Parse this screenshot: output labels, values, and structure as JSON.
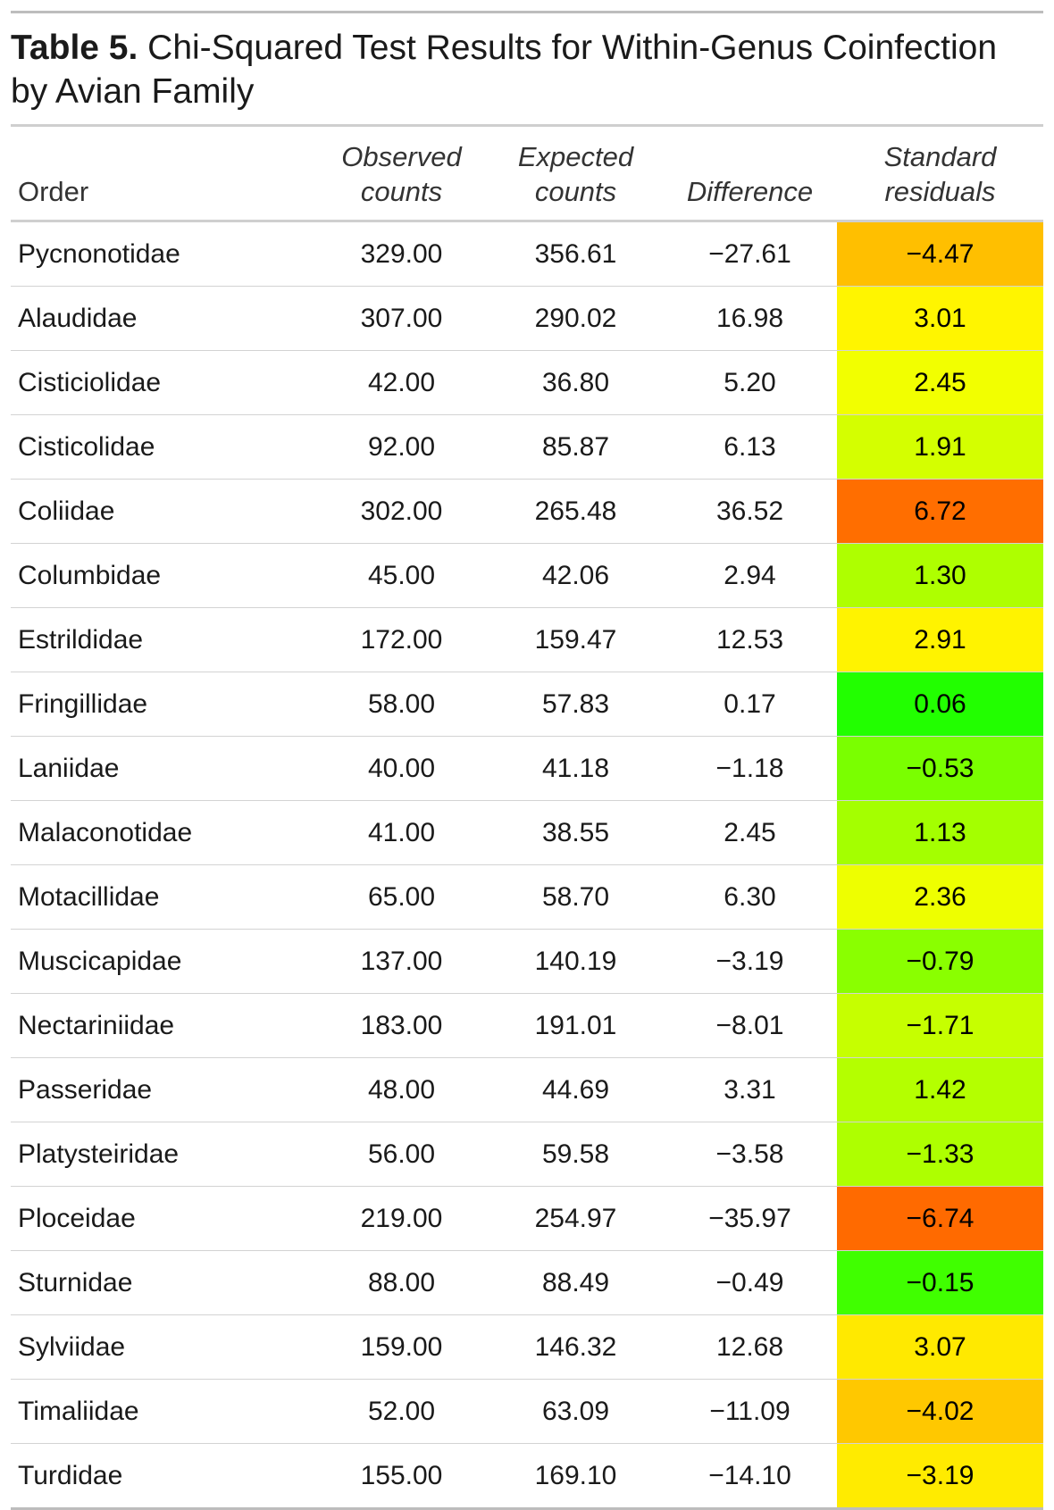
{
  "caption": {
    "lead": "Table 5.",
    "text": " Chi-Squared Test Results for Within-Genus Coinfection by Avian Family"
  },
  "columns": [
    "Order",
    "Observed counts",
    "Expected counts",
    "Difference",
    "Standard residuals"
  ],
  "chart_data": {
    "type": "table",
    "title": "Table 5. Chi-Squared Test Results for Within-Genus Coinfection by Avian Family",
    "columns": [
      "Order",
      "Observed counts",
      "Expected counts",
      "Difference",
      "Standard residuals"
    ],
    "rows": [
      {
        "order": "Pycnonotidae",
        "observed": "329.00",
        "expected": "356.61",
        "difference": "−27.61",
        "residual": "−4.47",
        "color": "#FFBF00"
      },
      {
        "order": "Alaudidae",
        "observed": "307.00",
        "expected": "290.02",
        "difference": "16.98",
        "residual": "3.01",
        "color": "#FFF500"
      },
      {
        "order": "Cisticiolidae",
        "observed": "42.00",
        "expected": "36.80",
        "difference": "5.20",
        "residual": "2.45",
        "color": "#F2FF00"
      },
      {
        "order": "Cisticolidae",
        "observed": "92.00",
        "expected": "85.87",
        "difference": "6.13",
        "residual": "1.91",
        "color": "#D4FF00"
      },
      {
        "order": "Coliidae",
        "observed": "302.00",
        "expected": "265.48",
        "difference": "36.52",
        "residual": "6.72",
        "color": "#FF6E00"
      },
      {
        "order": "Columbidae",
        "observed": "45.00",
        "expected": "42.06",
        "difference": "2.94",
        "residual": "1.30",
        "color": "#AEFF00"
      },
      {
        "order": "Estrildidae",
        "observed": "172.00",
        "expected": "159.47",
        "difference": "12.53",
        "residual": "2.91",
        "color": "#FFF300"
      },
      {
        "order": "Fringillidae",
        "observed": "58.00",
        "expected": "57.83",
        "difference": "0.17",
        "residual": "0.06",
        "color": "#22FF00"
      },
      {
        "order": "Laniidae",
        "observed": "40.00",
        "expected": "41.18",
        "difference": "−1.18",
        "residual": "−0.53",
        "color": "#7AFF00"
      },
      {
        "order": "Malaconotidae",
        "observed": "41.00",
        "expected": "38.55",
        "difference": "2.45",
        "residual": "1.13",
        "color": "#A4FF00"
      },
      {
        "order": "Motacillidae",
        "observed": "65.00",
        "expected": "58.70",
        "difference": "6.30",
        "residual": "2.36",
        "color": "#EEFF00"
      },
      {
        "order": "Muscicapidae",
        "observed": "137.00",
        "expected": "140.19",
        "difference": "−3.19",
        "residual": "−0.79",
        "color": "#8AFF00"
      },
      {
        "order": "Nectariniidae",
        "observed": "183.00",
        "expected": "191.01",
        "difference": "−8.01",
        "residual": "−1.71",
        "color": "#C6FF00"
      },
      {
        "order": "Passeridae",
        "observed": "48.00",
        "expected": "44.69",
        "difference": "3.31",
        "residual": "1.42",
        "color": "#B4FF00"
      },
      {
        "order": "Platysteiridae",
        "observed": "56.00",
        "expected": "59.58",
        "difference": "−3.58",
        "residual": "−1.33",
        "color": "#AEFF00"
      },
      {
        "order": "Ploceidae",
        "observed": "219.00",
        "expected": "254.97",
        "difference": "−35.97",
        "residual": "−6.74",
        "color": "#FF6A00"
      },
      {
        "order": "Sturnidae",
        "observed": "88.00",
        "expected": "88.49",
        "difference": "−0.49",
        "residual": "−0.15",
        "color": "#40FF00"
      },
      {
        "order": "Sylviidae",
        "observed": "159.00",
        "expected": "146.32",
        "difference": "12.68",
        "residual": "3.07",
        "color": "#FFE900"
      },
      {
        "order": "Timaliidae",
        "observed": "52.00",
        "expected": "63.09",
        "difference": "−11.09",
        "residual": "−4.02",
        "color": "#FFC800"
      },
      {
        "order": "Turdidae",
        "observed": "155.00",
        "expected": "169.10",
        "difference": "−14.10",
        "residual": "−3.19",
        "color": "#FFEB00"
      }
    ]
  }
}
